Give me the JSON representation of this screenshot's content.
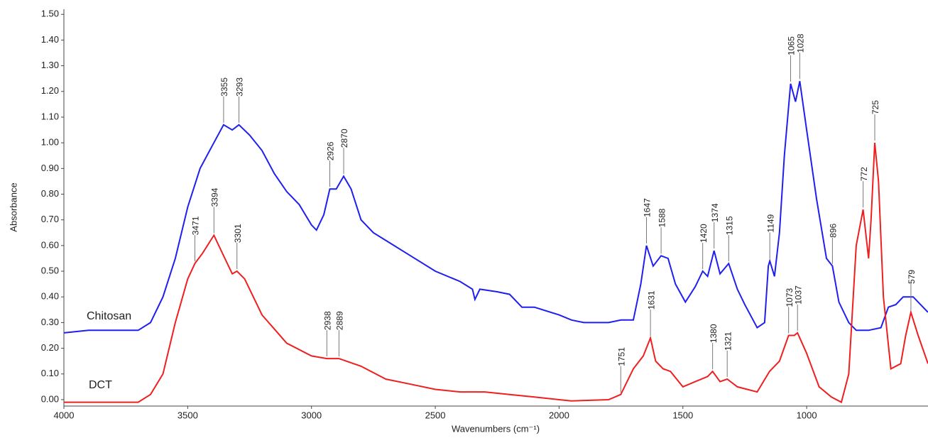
{
  "chart_data": {
    "type": "line",
    "x_label": "Wavenumbers (cm⁻¹)",
    "y_label": "Absorbance",
    "xlim": [
      4000,
      510
    ],
    "ylim": [
      -0.025,
      1.52
    ],
    "xticks": [
      4000,
      3500,
      3000,
      2500,
      2000,
      1500,
      1000
    ],
    "yticks": [
      {
        "value": 0,
        "label": "0.00"
      },
      {
        "value": 0.1,
        "label": "0.10"
      },
      {
        "value": 0.2,
        "label": "0.20"
      },
      {
        "value": 0.3,
        "label": "0.30"
      },
      {
        "value": 0.4,
        "label": "0.40"
      },
      {
        "value": 0.5,
        "label": "0.50"
      },
      {
        "value": 0.6,
        "label": "0.60"
      },
      {
        "value": 0.7,
        "label": "0.70"
      },
      {
        "value": 0.8,
        "label": "0.80"
      },
      {
        "value": 0.9,
        "label": "0.90"
      },
      {
        "value": 1,
        "label": "1.00"
      },
      {
        "value": 1.1,
        "label": "1.10"
      },
      {
        "value": 1.2,
        "label": "1.20"
      },
      {
        "value": 1.3,
        "label": "1.30"
      },
      {
        "value": 1.4,
        "label": "1.40"
      },
      {
        "value": 1.5,
        "label": "1.50"
      }
    ],
    "grid": false,
    "series": [
      {
        "name": "Chitosan",
        "color": "#1f1ff0",
        "x": [
          4000,
          3900,
          3800,
          3700,
          3650,
          3600,
          3550,
          3500,
          3450,
          3400,
          3355,
          3320,
          3293,
          3250,
          3200,
          3150,
          3100,
          3050,
          3000,
          2980,
          2950,
          2926,
          2900,
          2870,
          2840,
          2800,
          2750,
          2700,
          2600,
          2500,
          2400,
          2350,
          2340,
          2320,
          2250,
          2200,
          2150,
          2100,
          2000,
          1950,
          1900,
          1800,
          1750,
          1700,
          1670,
          1647,
          1620,
          1588,
          1560,
          1530,
          1490,
          1450,
          1420,
          1400,
          1374,
          1350,
          1315,
          1280,
          1250,
          1200,
          1170,
          1155,
          1149,
          1130,
          1110,
          1090,
          1065,
          1045,
          1028,
          1000,
          960,
          920,
          896,
          870,
          830,
          800,
          750,
          700,
          670,
          640,
          610,
          570,
          540,
          510
        ],
        "values": [
          0.26,
          0.27,
          0.27,
          0.27,
          0.3,
          0.4,
          0.55,
          0.75,
          0.9,
          0.99,
          1.07,
          1.05,
          1.07,
          1.03,
          0.97,
          0.88,
          0.81,
          0.76,
          0.68,
          0.66,
          0.72,
          0.82,
          0.82,
          0.87,
          0.82,
          0.7,
          0.65,
          0.62,
          0.56,
          0.5,
          0.46,
          0.43,
          0.39,
          0.43,
          0.42,
          0.41,
          0.36,
          0.36,
          0.33,
          0.31,
          0.3,
          0.3,
          0.31,
          0.31,
          0.45,
          0.6,
          0.52,
          0.56,
          0.55,
          0.45,
          0.38,
          0.44,
          0.5,
          0.48,
          0.58,
          0.49,
          0.53,
          0.43,
          0.37,
          0.28,
          0.3,
          0.52,
          0.54,
          0.48,
          0.65,
          0.95,
          1.23,
          1.16,
          1.24,
          1.05,
          0.78,
          0.55,
          0.52,
          0.38,
          0.3,
          0.27,
          0.27,
          0.28,
          0.36,
          0.37,
          0.4,
          0.4,
          0.37,
          0.34
        ]
      },
      {
        "name": "DCT",
        "color": "#f01f1f",
        "x": [
          4000,
          3800,
          3700,
          3650,
          3600,
          3550,
          3500,
          3471,
          3440,
          3394,
          3350,
          3320,
          3301,
          3270,
          3200,
          3100,
          3000,
          2938,
          2889,
          2800,
          2700,
          2600,
          2500,
          2400,
          2300,
          2200,
          2100,
          2000,
          1950,
          1800,
          1751,
          1700,
          1660,
          1631,
          1610,
          1580,
          1550,
          1500,
          1450,
          1400,
          1380,
          1350,
          1321,
          1280,
          1200,
          1150,
          1110,
          1073,
          1050,
          1037,
          1000,
          950,
          900,
          860,
          830,
          800,
          772,
          750,
          740,
          725,
          710,
          690,
          660,
          620,
          600,
          579,
          550,
          510
        ],
        "values": [
          -0.01,
          -0.01,
          -0.01,
          0.02,
          0.1,
          0.3,
          0.47,
          0.53,
          0.57,
          0.64,
          0.55,
          0.49,
          0.5,
          0.47,
          0.33,
          0.22,
          0.17,
          0.16,
          0.16,
          0.13,
          0.08,
          0.06,
          0.04,
          0.03,
          0.03,
          0.02,
          0.01,
          0.0,
          -0.005,
          0.0,
          0.02,
          0.12,
          0.17,
          0.24,
          0.15,
          0.12,
          0.11,
          0.05,
          0.07,
          0.09,
          0.11,
          0.07,
          0.08,
          0.05,
          0.03,
          0.11,
          0.15,
          0.25,
          0.25,
          0.26,
          0.18,
          0.05,
          0.01,
          -0.01,
          0.1,
          0.6,
          0.74,
          0.55,
          0.7,
          1.0,
          0.85,
          0.4,
          0.12,
          0.14,
          0.25,
          0.34,
          0.25,
          0.14
        ]
      }
    ],
    "annotations": [
      {
        "x": 3355,
        "y": 1.07
      },
      {
        "x": 3293,
        "y": 1.07
      },
      {
        "x": 2926,
        "y": 0.82
      },
      {
        "x": 2870,
        "y": 0.87
      },
      {
        "x": 1647,
        "y": 0.6
      },
      {
        "x": 1588,
        "y": 0.56
      },
      {
        "x": 1420,
        "y": 0.5
      },
      {
        "x": 1374,
        "y": 0.58
      },
      {
        "x": 1315,
        "y": 0.53
      },
      {
        "x": 1149,
        "y": 0.54
      },
      {
        "x": 1065,
        "y": 1.23
      },
      {
        "x": 1028,
        "y": 1.24
      },
      {
        "x": 896,
        "y": 0.52
      },
      {
        "x": 3471,
        "y": 0.53
      },
      {
        "x": 3394,
        "y": 0.64
      },
      {
        "x": 3301,
        "y": 0.5
      },
      {
        "x": 2938,
        "y": 0.16
      },
      {
        "x": 2889,
        "y": 0.16
      },
      {
        "x": 1751,
        "y": 0.02
      },
      {
        "x": 1631,
        "y": 0.24
      },
      {
        "x": 1380,
        "y": 0.11
      },
      {
        "x": 1321,
        "y": 0.08
      },
      {
        "x": 1073,
        "y": 0.25
      },
      {
        "x": 1037,
        "y": 0.26
      },
      {
        "x": 772,
        "y": 0.74
      },
      {
        "x": 725,
        "y": 1.0
      },
      {
        "x": 579,
        "y": 0.34
      }
    ]
  }
}
